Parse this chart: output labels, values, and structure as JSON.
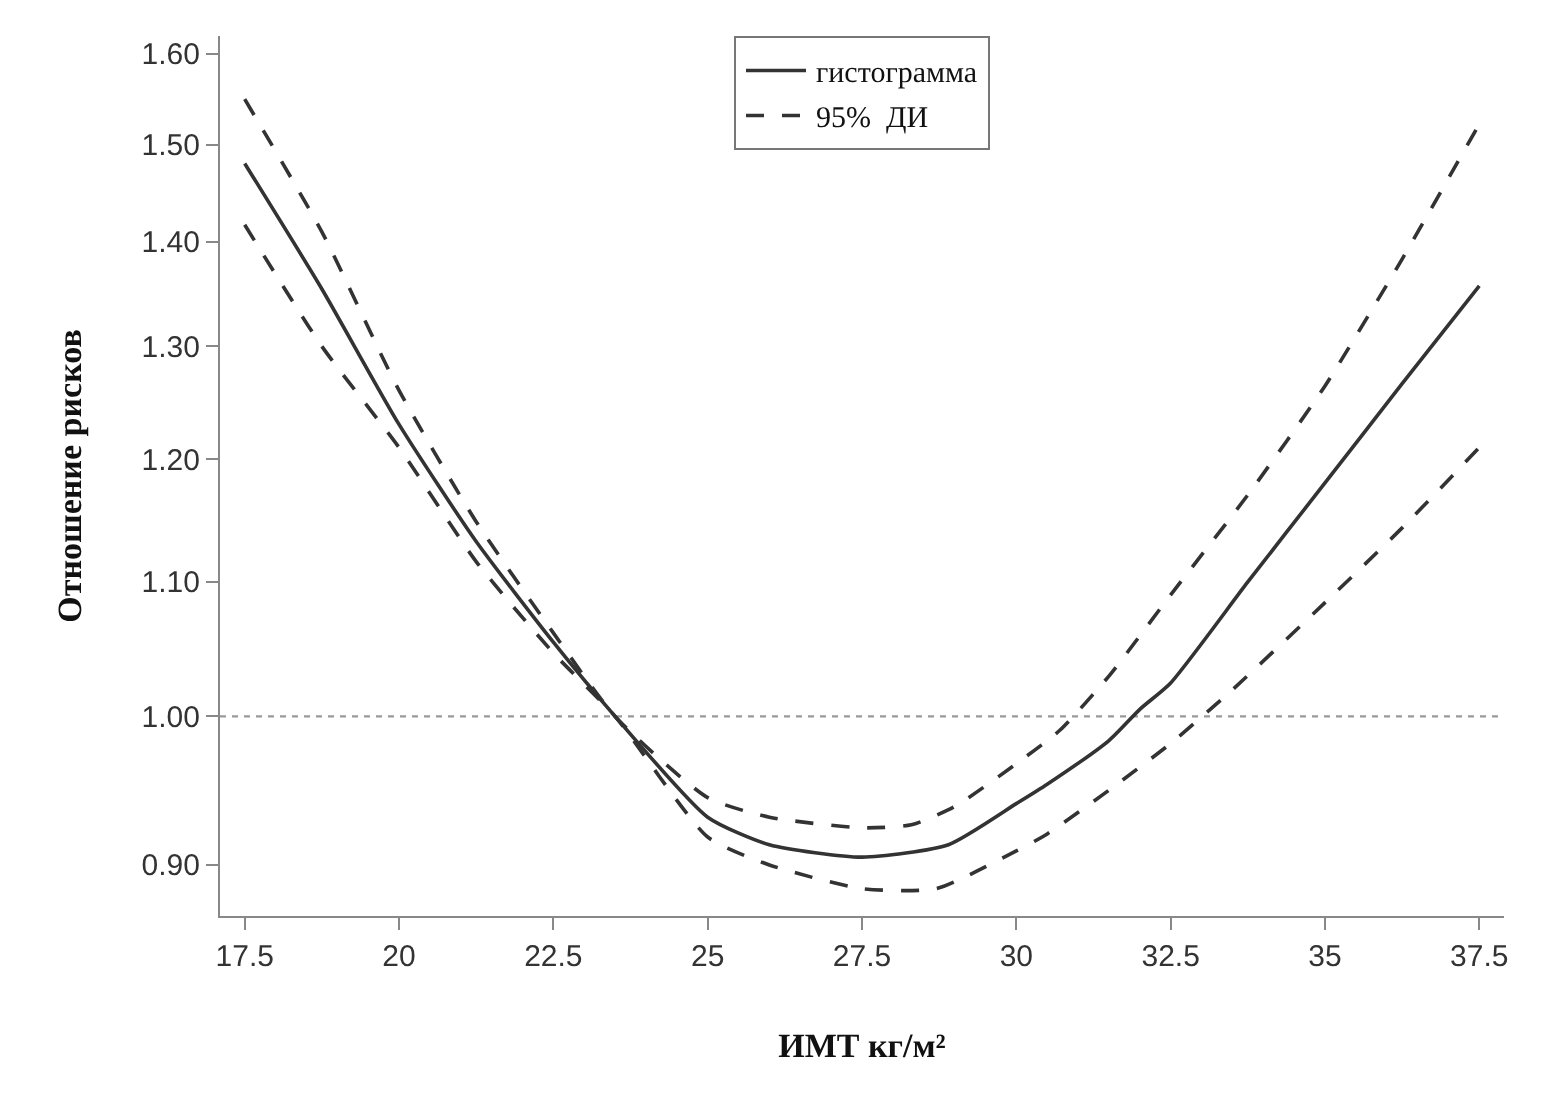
{
  "chart_data": {
    "type": "line",
    "xlabel": "ИМТ кг/м²",
    "ylabel": "Отношение рисков",
    "log": "y",
    "grid": false,
    "legend": "top",
    "marker": "none",
    "xlim": [
      17.1,
      37.9
    ],
    "xticks": [
      17.5,
      20,
      22.5,
      25,
      27.5,
      30,
      32.5,
      35,
      37.5
    ],
    "ylim": [
      0.868,
      1.62
    ],
    "yticks": [
      {
        "value": 0.9,
        "label": "0.90"
      },
      {
        "value": 1,
        "label": "1.00"
      },
      {
        "value": 1.1,
        "label": "1.10"
      },
      {
        "value": 1.2,
        "label": "1.20"
      },
      {
        "value": 1.3,
        "label": "1.30"
      },
      {
        "value": 1.4,
        "label": "1.40"
      },
      {
        "value": 1.5,
        "label": "1.50"
      },
      {
        "value": 1.6,
        "label": "1.60"
      }
    ],
    "ref_lines": [
      {
        "axis": "y",
        "value": 1,
        "color": "#999999",
        "line_style": "dotted"
      }
    ],
    "series": [
      {
        "name": "гистограмма",
        "color": "#333333",
        "line_style": "solid",
        "x": [
          17.5,
          18.75,
          20,
          21.25,
          22.5,
          23.5,
          25,
          26,
          27.5,
          28.9,
          30,
          30.5,
          31.5,
          32,
          32.5,
          33.75,
          35,
          36.25,
          37.5
        ],
        "values": [
          1.48,
          1.354,
          1.23,
          1.132,
          1.054,
          1.0,
          0.931,
          0.913,
          0.905,
          0.913,
          0.94,
          0.953,
          0.983,
          1.005,
          1.024,
          1.1,
          1.18,
          1.266,
          1.357
        ]
      },
      {
        "name": "95%  ДИ",
        "color": "#333333",
        "line_style": "dashed",
        "x": [
          17.5,
          18.75,
          20,
          21.25,
          22.5,
          23.5,
          25,
          26,
          27.5,
          28.3,
          29,
          30,
          30.7,
          31.5,
          32.5,
          33.75,
          35,
          36.25,
          37.5
        ],
        "values": [
          1.549,
          1.41,
          1.26,
          1.148,
          1.061,
          1.0,
          0.944,
          0.931,
          0.924,
          0.926,
          0.938,
          0.967,
          0.99,
          1.029,
          1.09,
          1.17,
          1.264,
          1.383,
          1.522
        ]
      },
      {
        "color": "#333333",
        "line_style": "dashed",
        "x": [
          17.5,
          18.75,
          20,
          21.25,
          22.5,
          23.5,
          25,
          26,
          27.5,
          28.7,
          30,
          30.5,
          31.5,
          32.5,
          33.5,
          35,
          36.25,
          37.5
        ],
        "values": [
          1.417,
          1.3,
          1.21,
          1.116,
          1.046,
          1.0,
          0.918,
          0.9,
          0.885,
          0.885,
          0.909,
          0.92,
          0.949,
          0.981,
          1.019,
          1.084,
          1.143,
          1.21
        ]
      }
    ]
  }
}
